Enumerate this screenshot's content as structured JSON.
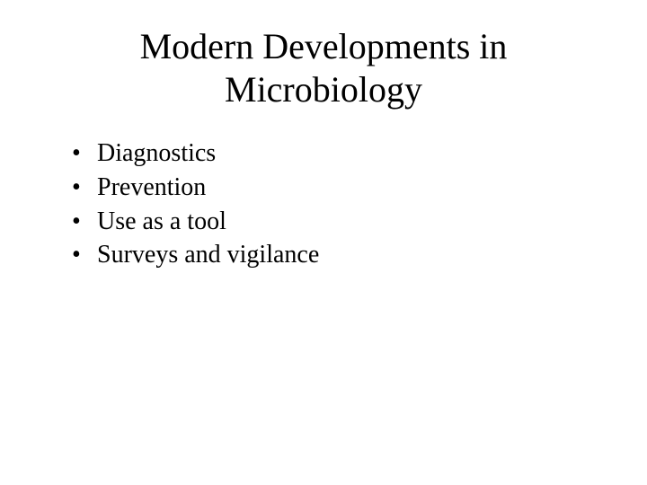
{
  "slide": {
    "title": "Modern Developments in Microbiology",
    "bullets": [
      "Diagnostics",
      "Prevention",
      "Use as a tool",
      "Surveys and vigilance"
    ],
    "background_color": "#ffffff",
    "text_color": "#000000",
    "title_fontsize": 40,
    "bullet_fontsize": 28,
    "font_family": "Times New Roman"
  }
}
